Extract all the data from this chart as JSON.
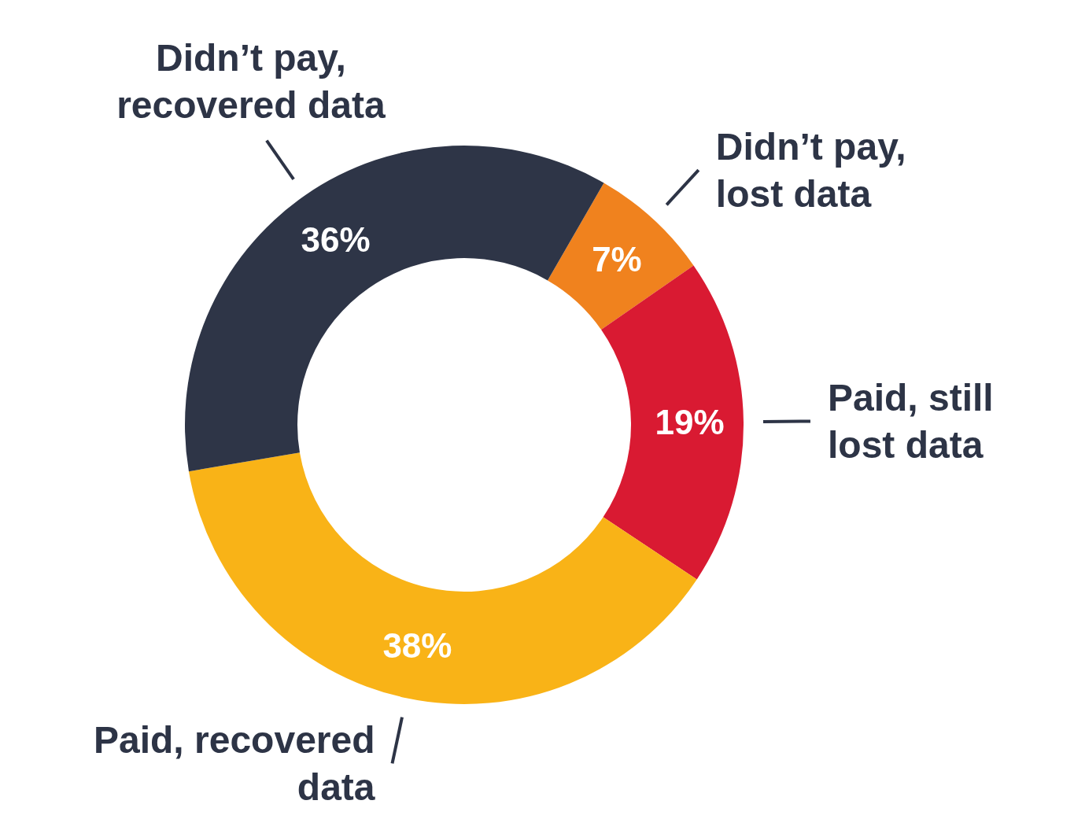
{
  "chart_data": {
    "type": "donut",
    "categories": [
      "Didn’t pay,\nlost data",
      "Paid, still\nlost data",
      "Paid, recovered\ndata",
      "Didn’t pay,\nrecovered data"
    ],
    "values": [
      7,
      19,
      38,
      36
    ],
    "colors": [
      "#f0821e",
      "#d91a32",
      "#f9b317",
      "#2e3547"
    ],
    "value_labels": [
      "7%",
      "19%",
      "38%",
      "36%"
    ]
  }
}
